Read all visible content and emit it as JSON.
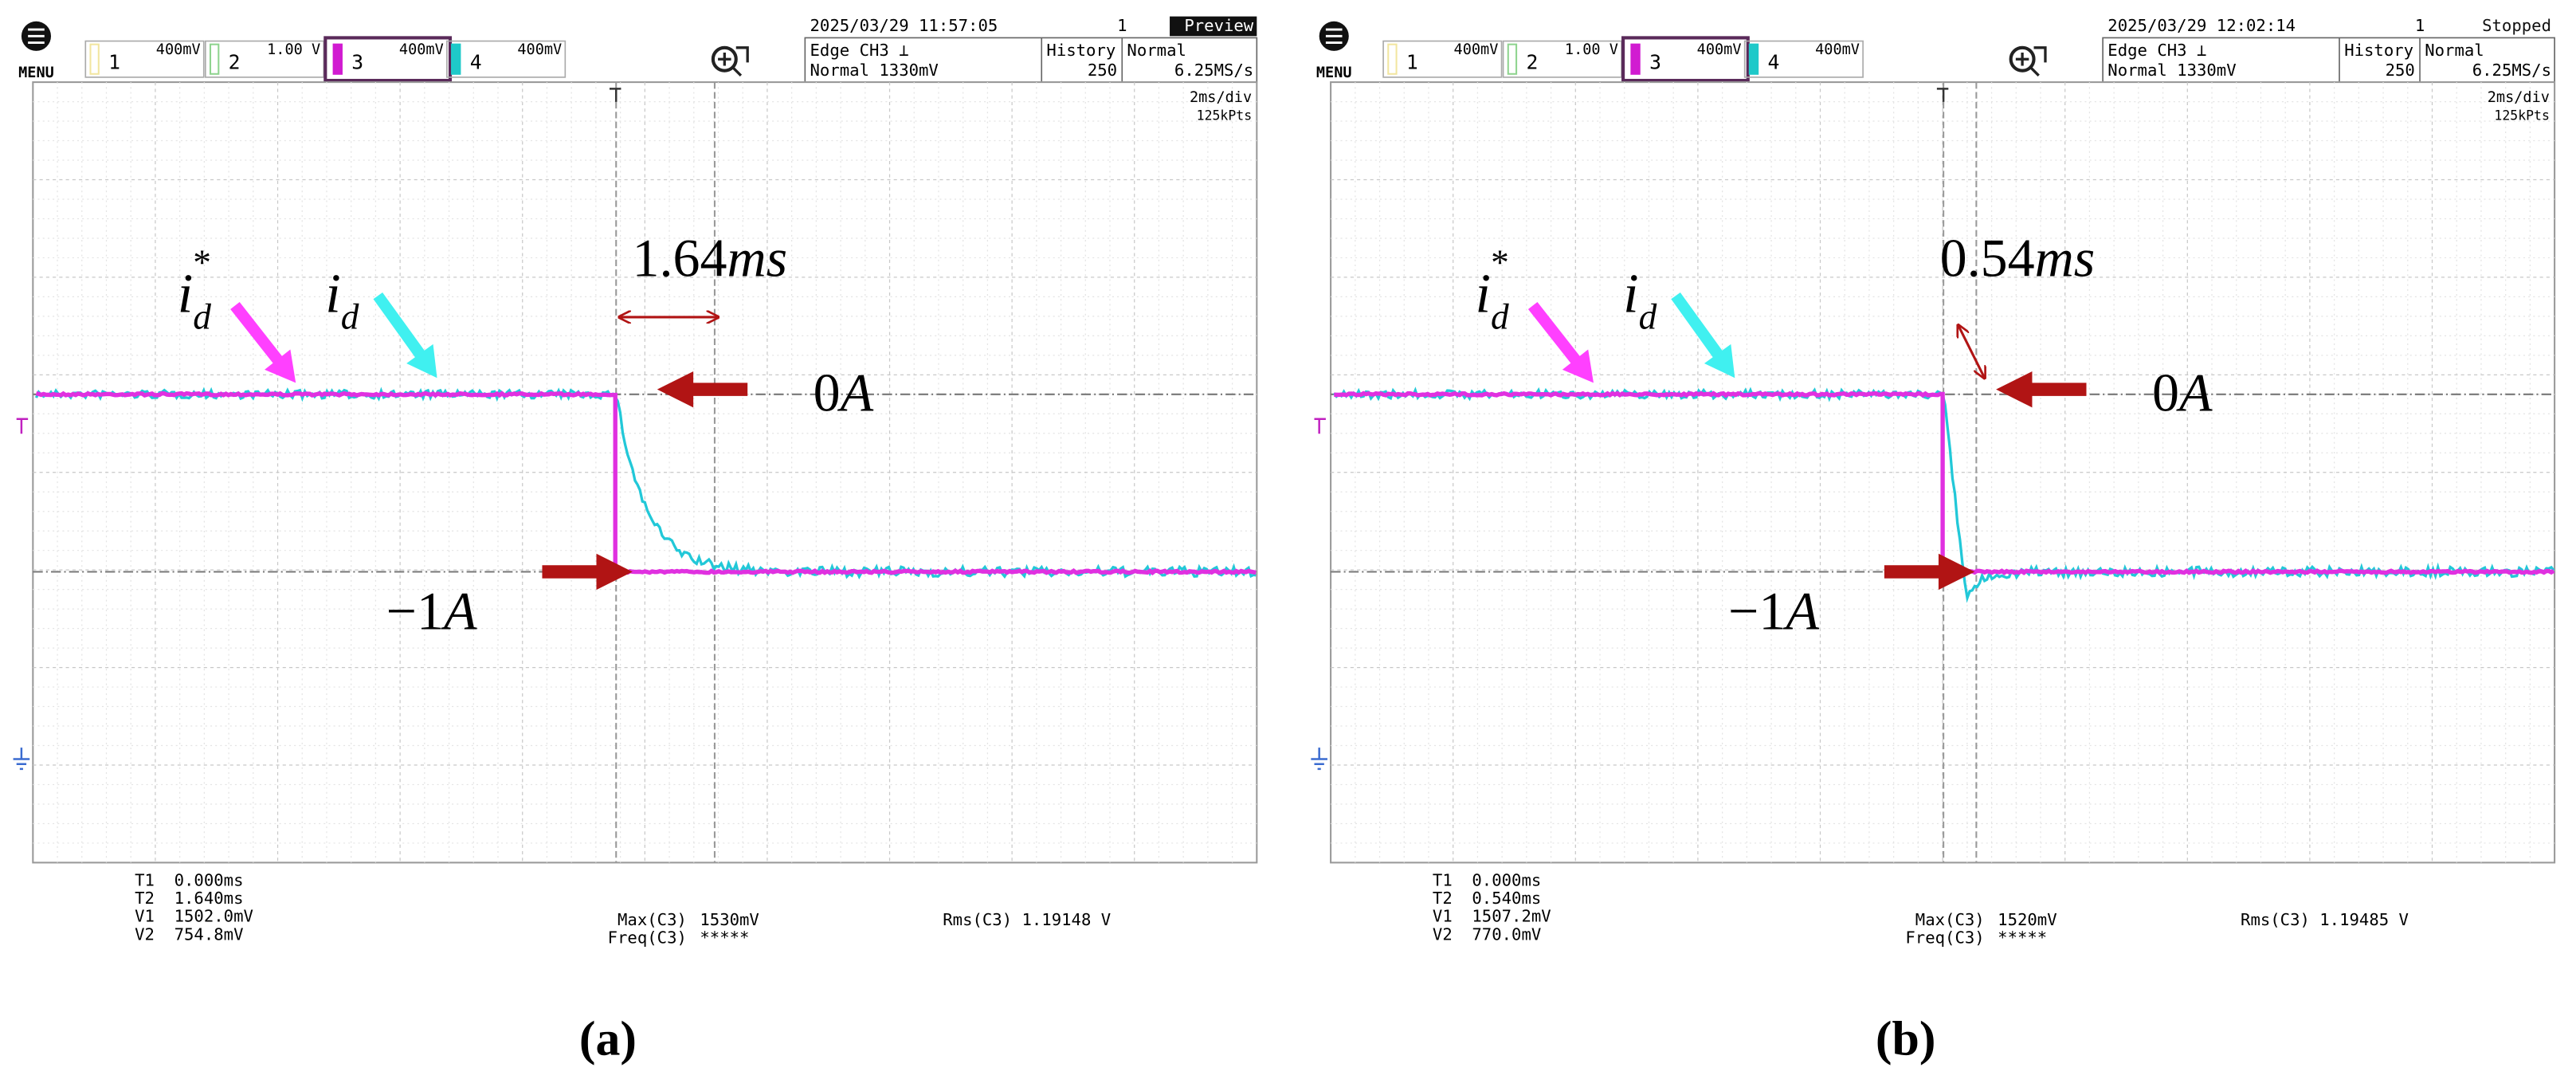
{
  "panels": [
    {
      "menu": "MENU",
      "channels": [
        {
          "number": "1",
          "scale": "400mV"
        },
        {
          "number": "2",
          "scale": "1.00 V"
        },
        {
          "number": "3",
          "scale": "400mV"
        },
        {
          "number": "4",
          "scale": "400mV"
        }
      ],
      "timestamp": "2025/03/29 11:57:05",
      "acq_count": "1",
      "status": "Preview",
      "trigger": "Edge CH3 ⊥",
      "trigger_level": "Normal 1330mV",
      "history_label": "History",
      "history_value": "250",
      "mode": "Normal",
      "sample_rate": "6.25MS/s",
      "timebase": "2ms/div",
      "record_length": "125kPts",
      "cursors": [
        {
          "label": "T1",
          "value": "0.000ms"
        },
        {
          "label": "T2",
          "value": "1.640ms"
        },
        {
          "label": "V1",
          "value": "1502.0mV"
        },
        {
          "label": "V2",
          "value": "754.8mV"
        }
      ],
      "measurements": [
        {
          "label": "Max(C3)",
          "value": "1530mV"
        },
        {
          "label": "Freq(C3)",
          "value": "*****"
        },
        {
          "label": "Rms(C3)",
          "value": "1.19148 V"
        }
      ],
      "interval": {
        "value": "1.64",
        "unit": "ms"
      },
      "zero": {
        "value": "0",
        "unit": "A"
      },
      "minus": {
        "value": "−1",
        "unit": "A"
      },
      "reference": {
        "symbol": "i",
        "subscript": "d",
        "superscript": "*"
      },
      "measured": {
        "symbol": "i",
        "subscript": "d"
      },
      "caption": "(a)"
    },
    {
      "menu": "MENU",
      "channels": [
        {
          "number": "1",
          "scale": "400mV"
        },
        {
          "number": "2",
          "scale": "1.00 V"
        },
        {
          "number": "3",
          "scale": "400mV"
        },
        {
          "number": "4",
          "scale": "400mV"
        }
      ],
      "timestamp": "2025/03/29 12:02:14",
      "acq_count": "1",
      "status": "Stopped",
      "trigger": "Edge CH3 ⊥",
      "trigger_level": "Normal 1330mV",
      "history_label": "History",
      "history_value": "250",
      "mode": "Normal",
      "sample_rate": "6.25MS/s",
      "timebase": "2ms/div",
      "record_length": "125kPts",
      "cursors": [
        {
          "label": "T1",
          "value": "0.000ms"
        },
        {
          "label": "T2",
          "value": "0.540ms"
        },
        {
          "label": "V1",
          "value": "1507.2mV"
        },
        {
          "label": "V2",
          "value": "770.0mV"
        }
      ],
      "measurements": [
        {
          "label": "Max(C3)",
          "value": "1520mV"
        },
        {
          "label": "Freq(C3)",
          "value": "*****"
        },
        {
          "label": "Rms(C3)",
          "value": "1.19485 V"
        }
      ],
      "interval": {
        "value": "0.54",
        "unit": "ms"
      },
      "zero": {
        "value": "0",
        "unit": "A"
      },
      "minus": {
        "value": "−1",
        "unit": "A"
      },
      "reference": {
        "symbol": "i",
        "subscript": "d",
        "superscript": "*"
      },
      "measured": {
        "symbol": "i",
        "subscript": "d"
      },
      "caption": "(b)"
    }
  ]
}
